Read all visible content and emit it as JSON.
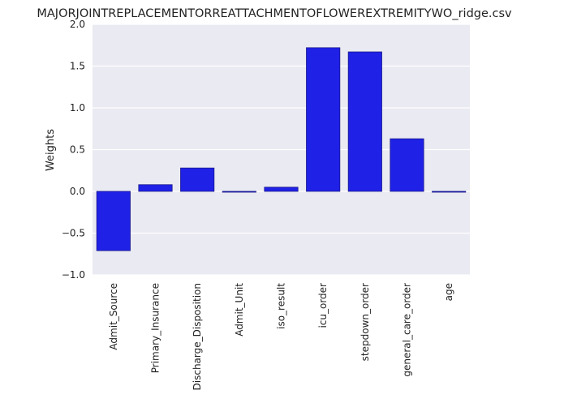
{
  "chart_data": {
    "type": "bar",
    "title": "MAJORJOINTREPLACEMENTORREATTACHMENTOFLOWEREXTREMITYWO_ridge.csv",
    "xlabel": "",
    "ylabel": "Weights",
    "categories": [
      "Admit_Source",
      "Primary_Insurance",
      "Discharge_Disposition",
      "Admit_Unit",
      "iso_result",
      "icu_order",
      "stepdown_order",
      "general_care_order",
      "age"
    ],
    "values": [
      -0.71,
      0.08,
      0.28,
      -0.01,
      0.05,
      1.72,
      1.67,
      0.63,
      -0.01
    ],
    "ylim": [
      -1.0,
      2.0
    ],
    "yticks": [
      -1.0,
      -0.5,
      0.0,
      0.5,
      1.0,
      1.5,
      2.0
    ],
    "ytick_labels": [
      "−1.0",
      "−0.5",
      "0.0",
      "0.5",
      "1.0",
      "1.5",
      "2.0"
    ],
    "grid": true,
    "colors": {
      "bar": "#1f21e6",
      "bar_edge": "#1a1a8c",
      "plot_bg": "#eaeaf2",
      "grid": "#ffffff"
    }
  }
}
